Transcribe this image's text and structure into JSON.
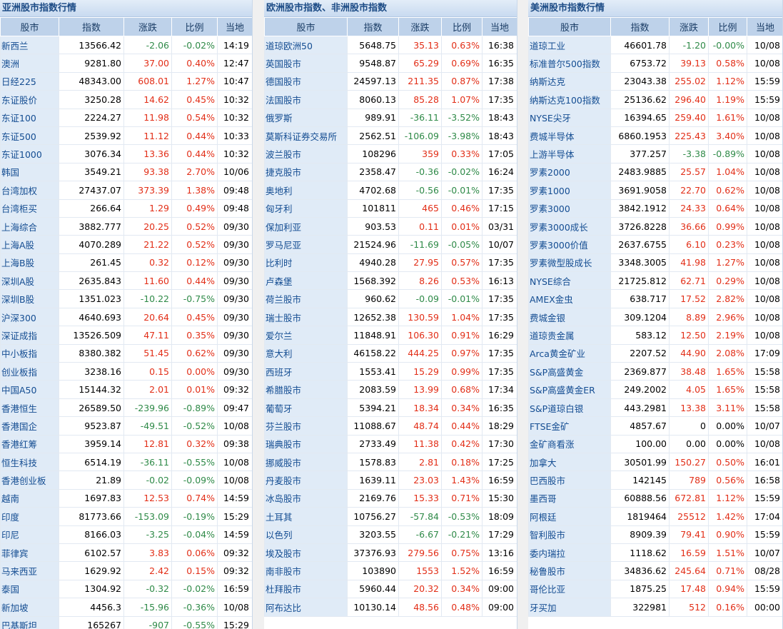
{
  "colors": {
    "up": "#e22e17",
    "down": "#2f8a48",
    "name_text": "#144d92",
    "header_bg": "#bed2ea"
  },
  "panels": [
    {
      "title": "亚洲股市指数行情",
      "headers": [
        "股市",
        "指数",
        "涨跌",
        "比例",
        "当地"
      ],
      "rows": [
        {
          "name": "新西兰",
          "index": "13566.42",
          "change": "-2.06",
          "pct": "-0.02%",
          "time": "14:19"
        },
        {
          "name": "澳洲",
          "index": "9281.80",
          "change": "37.00",
          "pct": "0.40%",
          "time": "12:47"
        },
        {
          "name": "日经225",
          "index": "48343.00",
          "change": "608.01",
          "pct": "1.27%",
          "time": "10:47"
        },
        {
          "name": "东证股价",
          "index": "3250.28",
          "change": "14.62",
          "pct": "0.45%",
          "time": "10:32"
        },
        {
          "name": "东证100",
          "index": "2224.27",
          "change": "11.98",
          "pct": "0.54%",
          "time": "10:32"
        },
        {
          "name": "东证500",
          "index": "2539.92",
          "change": "11.12",
          "pct": "0.44%",
          "time": "10:33"
        },
        {
          "name": "东证1000",
          "index": "3076.34",
          "change": "13.36",
          "pct": "0.44%",
          "time": "10:32"
        },
        {
          "name": "韩国",
          "index": "3549.21",
          "change": "93.38",
          "pct": "2.70%",
          "time": "10/06"
        },
        {
          "name": "台湾加权",
          "index": "27437.07",
          "change": "373.39",
          "pct": "1.38%",
          "time": "09:48"
        },
        {
          "name": "台湾柜买",
          "index": "266.64",
          "change": "1.29",
          "pct": "0.49%",
          "time": "09:48"
        },
        {
          "name": "上海综合",
          "index": "3882.777",
          "change": "20.25",
          "pct": "0.52%",
          "time": "09/30"
        },
        {
          "name": "上海A股",
          "index": "4070.289",
          "change": "21.22",
          "pct": "0.52%",
          "time": "09/30"
        },
        {
          "name": "上海B股",
          "index": "261.45",
          "change": "0.32",
          "pct": "0.12%",
          "time": "09/30"
        },
        {
          "name": "深圳A股",
          "index": "2635.843",
          "change": "11.60",
          "pct": "0.44%",
          "time": "09/30"
        },
        {
          "name": "深圳B股",
          "index": "1351.023",
          "change": "-10.22",
          "pct": "-0.75%",
          "time": "09/30"
        },
        {
          "name": "沪深300",
          "index": "4640.693",
          "change": "20.64",
          "pct": "0.45%",
          "time": "09/30"
        },
        {
          "name": "深证成指",
          "index": "13526.509",
          "change": "47.11",
          "pct": "0.35%",
          "time": "09/30"
        },
        {
          "name": "中小板指",
          "index": "8380.382",
          "change": "51.45",
          "pct": "0.62%",
          "time": "09/30"
        },
        {
          "name": "创业板指",
          "index": "3238.16",
          "change": "0.15",
          "pct": "0.00%",
          "time": "09/30"
        },
        {
          "name": "中国A50",
          "index": "15144.32",
          "change": "2.01",
          "pct": "0.01%",
          "time": "09:32"
        },
        {
          "name": "香港恒生",
          "index": "26589.50",
          "change": "-239.96",
          "pct": "-0.89%",
          "time": "09:47"
        },
        {
          "name": "香港国企",
          "index": "9523.87",
          "change": "-49.51",
          "pct": "-0.52%",
          "time": "10/08"
        },
        {
          "name": "香港红筹",
          "index": "3959.14",
          "change": "12.81",
          "pct": "0.32%",
          "time": "09:38"
        },
        {
          "name": "恒生科技",
          "index": "6514.19",
          "change": "-36.11",
          "pct": "-0.55%",
          "time": "10/08"
        },
        {
          "name": "香港创业板",
          "index": "21.89",
          "change": "-0.02",
          "pct": "-0.09%",
          "time": "10/08"
        },
        {
          "name": "越南",
          "index": "1697.83",
          "change": "12.53",
          "pct": "0.74%",
          "time": "14:59"
        },
        {
          "name": "印度",
          "index": "81773.66",
          "change": "-153.09",
          "pct": "-0.19%",
          "time": "15:29"
        },
        {
          "name": "印尼",
          "index": "8166.03",
          "change": "-3.25",
          "pct": "-0.04%",
          "time": "14:59"
        },
        {
          "name": "菲律宾",
          "index": "6102.57",
          "change": "3.83",
          "pct": "0.06%",
          "time": "09:32"
        },
        {
          "name": "马来西亚",
          "index": "1629.92",
          "change": "2.42",
          "pct": "0.15%",
          "time": "09:32"
        },
        {
          "name": "泰国",
          "index": "1304.92",
          "change": "-0.32",
          "pct": "-0.02%",
          "time": "16:59"
        },
        {
          "name": "新加坡",
          "index": "4456.3",
          "change": "-15.96",
          "pct": "-0.36%",
          "time": "10/08"
        },
        {
          "name": "巴基斯坦",
          "index": "165267",
          "change": "-907",
          "pct": "-0.55%",
          "time": "15:29"
        }
      ]
    },
    {
      "title": "欧洲股市指数、非洲股市指数",
      "headers": [
        "股市",
        "指数",
        "涨跌",
        "比例",
        "当地"
      ],
      "rows": [
        {
          "name": "道琼欧洲50",
          "index": "5648.75",
          "change": "35.13",
          "pct": "0.63%",
          "time": "16:38"
        },
        {
          "name": "英国股市",
          "index": "9548.87",
          "change": "65.29",
          "pct": "0.69%",
          "time": "16:35"
        },
        {
          "name": "德国股市",
          "index": "24597.13",
          "change": "211.35",
          "pct": "0.87%",
          "time": "17:38"
        },
        {
          "name": "法国股市",
          "index": "8060.13",
          "change": "85.28",
          "pct": "1.07%",
          "time": "17:35"
        },
        {
          "name": "俄罗斯",
          "index": "989.91",
          "change": "-36.11",
          "pct": "-3.52%",
          "time": "18:43"
        },
        {
          "name": "莫斯科证券交易所",
          "index": "2562.51",
          "change": "-106.09",
          "pct": "-3.98%",
          "time": "18:43"
        },
        {
          "name": "波兰股市",
          "index": "108296",
          "change": "359",
          "pct": "0.33%",
          "time": "17:05"
        },
        {
          "name": "捷克股市",
          "index": "2358.47",
          "change": "-0.36",
          "pct": "-0.02%",
          "time": "16:24"
        },
        {
          "name": "奥地利",
          "index": "4702.68",
          "change": "-0.56",
          "pct": "-0.01%",
          "time": "17:35"
        },
        {
          "name": "匈牙利",
          "index": "101811",
          "change": "465",
          "pct": "0.46%",
          "time": "17:15"
        },
        {
          "name": "保加利亚",
          "index": "903.53",
          "change": "0.11",
          "pct": "0.01%",
          "time": "03/31"
        },
        {
          "name": "罗马尼亚",
          "index": "21524.96",
          "change": "-11.69",
          "pct": "-0.05%",
          "time": "10/07"
        },
        {
          "name": "比利时",
          "index": "4940.28",
          "change": "27.95",
          "pct": "0.57%",
          "time": "17:35"
        },
        {
          "name": "卢森堡",
          "index": "1568.392",
          "change": "8.26",
          "pct": "0.53%",
          "time": "16:13"
        },
        {
          "name": "荷兰股市",
          "index": "960.62",
          "change": "-0.09",
          "pct": "-0.01%",
          "time": "17:35"
        },
        {
          "name": "瑞士股市",
          "index": "12652.38",
          "change": "130.59",
          "pct": "1.04%",
          "time": "17:35"
        },
        {
          "name": "爱尔兰",
          "index": "11848.91",
          "change": "106.30",
          "pct": "0.91%",
          "time": "16:29"
        },
        {
          "name": "意大利",
          "index": "46158.22",
          "change": "444.25",
          "pct": "0.97%",
          "time": "17:35"
        },
        {
          "name": "西班牙",
          "index": "1553.41",
          "change": "15.29",
          "pct": "0.99%",
          "time": "17:35"
        },
        {
          "name": "希腊股市",
          "index": "2083.59",
          "change": "13.99",
          "pct": "0.68%",
          "time": "17:34"
        },
        {
          "name": "葡萄牙",
          "index": "5394.21",
          "change": "18.34",
          "pct": "0.34%",
          "time": "16:35"
        },
        {
          "name": "芬兰股市",
          "index": "11088.67",
          "change": "48.74",
          "pct": "0.44%",
          "time": "18:29"
        },
        {
          "name": "瑞典股市",
          "index": "2733.49",
          "change": "11.38",
          "pct": "0.42%",
          "time": "17:30"
        },
        {
          "name": "挪威股市",
          "index": "1578.83",
          "change": "2.81",
          "pct": "0.18%",
          "time": "17:25"
        },
        {
          "name": "丹麦股市",
          "index": "1639.11",
          "change": "23.03",
          "pct": "1.43%",
          "time": "16:59"
        },
        {
          "name": "冰岛股市",
          "index": "2169.76",
          "change": "15.33",
          "pct": "0.71%",
          "time": "15:30"
        },
        {
          "name": "土耳其",
          "index": "10756.27",
          "change": "-57.84",
          "pct": "-0.53%",
          "time": "18:09"
        },
        {
          "name": "以色列",
          "index": "3203.55",
          "change": "-6.67",
          "pct": "-0.21%",
          "time": "17:29"
        },
        {
          "name": "埃及股市",
          "index": "37376.93",
          "change": "279.56",
          "pct": "0.75%",
          "time": "13:16"
        },
        {
          "name": "南非股市",
          "index": "103890",
          "change": "1553",
          "pct": "1.52%",
          "time": "16:59"
        },
        {
          "name": "杜拜股市",
          "index": "5960.44",
          "change": "20.32",
          "pct": "0.34%",
          "time": "09:00"
        },
        {
          "name": "阿布达比",
          "index": "10130.14",
          "change": "48.56",
          "pct": "0.48%",
          "time": "09:00"
        }
      ]
    },
    {
      "title": "美洲股市指数行情",
      "headers": [
        "股市",
        "指数",
        "涨跌",
        "比例",
        "当地"
      ],
      "rows": [
        {
          "name": "道琼工业",
          "index": "46601.78",
          "change": "-1.20",
          "pct": "-0.00%",
          "time": "10/08"
        },
        {
          "name": "标准普尔500指数",
          "index": "6753.72",
          "change": "39.13",
          "pct": "0.58%",
          "time": "10/08"
        },
        {
          "name": "纳斯达克",
          "index": "23043.38",
          "change": "255.02",
          "pct": "1.12%",
          "time": "15:59"
        },
        {
          "name": "纳斯达克100指数",
          "index": "25136.62",
          "change": "296.40",
          "pct": "1.19%",
          "time": "15:59"
        },
        {
          "name": "NYSE尖牙",
          "index": "16394.65",
          "change": "259.40",
          "pct": "1.61%",
          "time": "10/08"
        },
        {
          "name": "费城半导体",
          "index": "6860.1953",
          "change": "225.43",
          "pct": "3.40%",
          "time": "10/08"
        },
        {
          "name": "上游半导体",
          "index": "377.257",
          "change": "-3.38",
          "pct": "-0.89%",
          "time": "10/08"
        },
        {
          "name": "罗素2000",
          "index": "2483.9885",
          "change": "25.57",
          "pct": "1.04%",
          "time": "10/08"
        },
        {
          "name": "罗素1000",
          "index": "3691.9058",
          "change": "22.70",
          "pct": "0.62%",
          "time": "10/08"
        },
        {
          "name": "罗素3000",
          "index": "3842.1912",
          "change": "24.33",
          "pct": "0.64%",
          "time": "10/08"
        },
        {
          "name": "罗素3000成长",
          "index": "3726.8228",
          "change": "36.66",
          "pct": "0.99%",
          "time": "10/08"
        },
        {
          "name": "罗素3000价值",
          "index": "2637.6755",
          "change": "6.10",
          "pct": "0.23%",
          "time": "10/08"
        },
        {
          "name": "罗素微型股成长",
          "index": "3348.3005",
          "change": "41.98",
          "pct": "1.27%",
          "time": "10/08"
        },
        {
          "name": "NYSE综合",
          "index": "21725.812",
          "change": "62.71",
          "pct": "0.29%",
          "time": "10/08"
        },
        {
          "name": "AMEX金虫",
          "index": "638.717",
          "change": "17.52",
          "pct": "2.82%",
          "time": "10/08"
        },
        {
          "name": "费城金银",
          "index": "309.1204",
          "change": "8.89",
          "pct": "2.96%",
          "time": "10/08"
        },
        {
          "name": "道琼贵金属",
          "index": "583.12",
          "change": "12.50",
          "pct": "2.19%",
          "time": "10/08"
        },
        {
          "name": "Arca黄金矿业",
          "index": "2207.52",
          "change": "44.90",
          "pct": "2.08%",
          "time": "17:09"
        },
        {
          "name": "S&P高盛黄金",
          "index": "2369.877",
          "change": "38.48",
          "pct": "1.65%",
          "time": "15:58"
        },
        {
          "name": "S&P高盛黄金ER",
          "index": "249.2002",
          "change": "4.05",
          "pct": "1.65%",
          "time": "15:58"
        },
        {
          "name": "S&P道琼白银",
          "index": "443.2981",
          "change": "13.38",
          "pct": "3.11%",
          "time": "15:58"
        },
        {
          "name": "FTSE金矿",
          "index": "4857.67",
          "change": "0",
          "pct": "0.00%",
          "time": "10/07"
        },
        {
          "name": "金矿商看涨",
          "index": "100.00",
          "change": "0.00",
          "pct": "0.00%",
          "time": "10/08"
        },
        {
          "name": "加拿大",
          "index": "30501.99",
          "change": "150.27",
          "pct": "0.50%",
          "time": "16:01"
        },
        {
          "name": "巴西股市",
          "index": "142145",
          "change": "789",
          "pct": "0.56%",
          "time": "16:58"
        },
        {
          "name": "墨西哥",
          "index": "60888.56",
          "change": "672.81",
          "pct": "1.12%",
          "time": "15:59"
        },
        {
          "name": "阿根廷",
          "index": "1819464",
          "change": "25512",
          "pct": "1.42%",
          "time": "17:04"
        },
        {
          "name": "智利股市",
          "index": "8909.39",
          "change": "79.41",
          "pct": "0.90%",
          "time": "15:59"
        },
        {
          "name": "委内瑞拉",
          "index": "1118.62",
          "change": "16.59",
          "pct": "1.51%",
          "time": "10/07"
        },
        {
          "name": "秘鲁股市",
          "index": "34836.62",
          "change": "245.64",
          "pct": "0.71%",
          "time": "08/28"
        },
        {
          "name": "哥伦比亚",
          "index": "1875.25",
          "change": "17.48",
          "pct": "0.94%",
          "time": "15:59"
        },
        {
          "name": "牙买加",
          "index": "322981",
          "change": "512",
          "pct": "0.16%",
          "time": "00:00"
        }
      ]
    }
  ]
}
